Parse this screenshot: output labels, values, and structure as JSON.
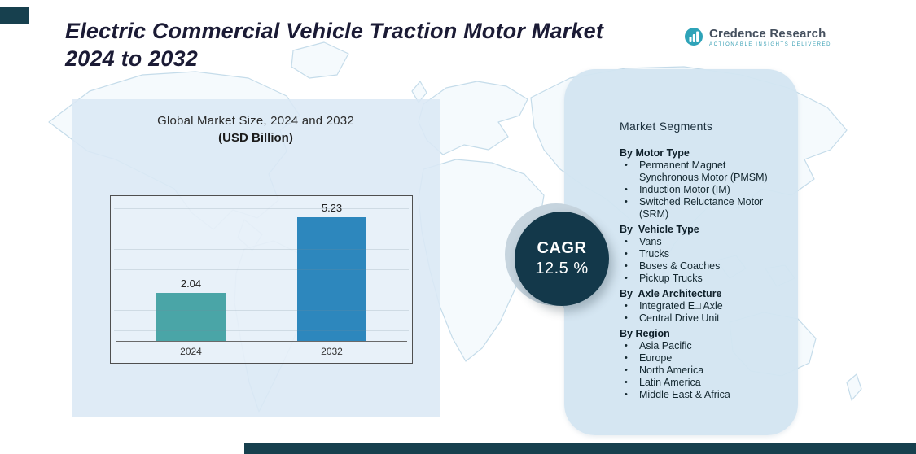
{
  "header": {
    "title_line1": "Electric Commercial Vehicle Traction Motor Market",
    "title_line2": "2024 to 2032",
    "logo": {
      "brand": "Credence Research",
      "tagline": "Actionable Insights Delivered"
    }
  },
  "chart": {
    "title": "Global Market Size, 2024 and 2032",
    "subtitle": "(USD Billion)"
  },
  "chart_data": {
    "type": "bar",
    "title": "Global Market Size, 2024 and 2032 (USD Billion)",
    "categories": [
      "2024",
      "2032"
    ],
    "values": [
      2.04,
      5.23
    ],
    "values_display": [
      "2.04",
      "5.23"
    ],
    "bar_colors": [
      "#4aa5a7",
      "#2d87bd"
    ],
    "xlabel": "",
    "ylabel": "USD Billion",
    "ylim": [
      0,
      6
    ],
    "grid": true,
    "legend": false,
    "annotations": [
      "CAGR 12.5 %"
    ]
  },
  "cagr": {
    "label": "CAGR",
    "value": "12.5 %"
  },
  "segments": {
    "title": "Market Segments",
    "groups": [
      {
        "heading": "By Motor Type",
        "items": [
          "Permanent Magnet Synchronous Motor (PMSM)",
          "Induction Motor (IM)",
          "Switched Reluctance Motor (SRM)"
        ]
      },
      {
        "heading": "By  Vehicle Type",
        "items": [
          "Vans",
          "Trucks",
          "Buses & Coaches",
          "Pickup Trucks"
        ]
      },
      {
        "heading": "By  Axle Architecture",
        "items": [
          "Integrated E□ Axle",
          "Central Drive Unit"
        ]
      },
      {
        "heading": "By Region",
        "items": [
          "Asia Pacific",
          "Europe",
          "North America",
          "Latin America",
          "Middle East & Africa"
        ]
      }
    ]
  },
  "colors": {
    "accent_dark": "#17404e",
    "bar_2024": "#4aa5a7",
    "bar_2032": "#2d87bd",
    "cagr_circle": "#13384a",
    "panel_left": "#dbe8f5",
    "panel_right": "#d3e5f1",
    "map_line": "#c5dcea"
  }
}
